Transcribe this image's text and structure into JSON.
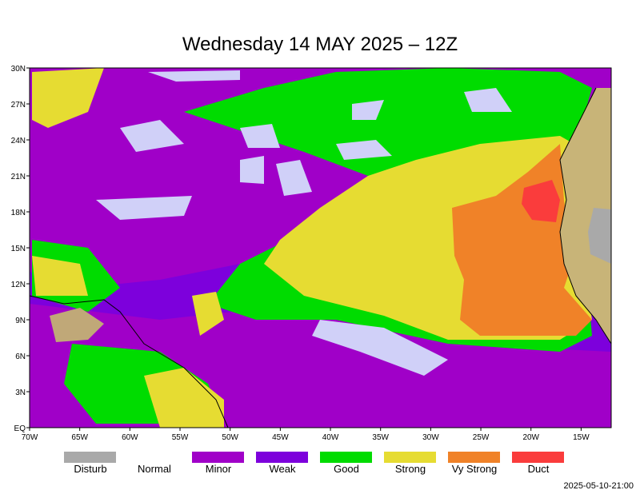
{
  "header": {
    "title": "Wednesday 14 MAY 2025 – 12Z"
  },
  "map": {
    "lat_labels": [
      "EQ",
      "3N",
      "6N",
      "9N",
      "12N",
      "15N",
      "18N",
      "21N",
      "24N",
      "27N",
      "30N"
    ],
    "lon_labels": [
      "70W",
      "65W",
      "60W",
      "55W",
      "50W",
      "45W",
      "40W",
      "35W",
      "30W",
      "25W",
      "20W",
      "15W"
    ]
  },
  "legend": [
    {
      "label": "Disturb",
      "color": "#a9a9a9"
    },
    {
      "label": "Normal",
      "color": "#ffffff"
    },
    {
      "label": "Minor",
      "color": "#a000c8"
    },
    {
      "label": "Weak",
      "color": "#7d00dc"
    },
    {
      "label": "Good",
      "color": "#00dc00"
    },
    {
      "label": "Strong",
      "color": "#e6dc32"
    },
    {
      "label": "Vy Strong",
      "color": "#f08228"
    },
    {
      "label": "Duct",
      "color": "#fa3c3c"
    }
  ],
  "footer": {
    "timestamp": "2025-05-10-21:00"
  }
}
